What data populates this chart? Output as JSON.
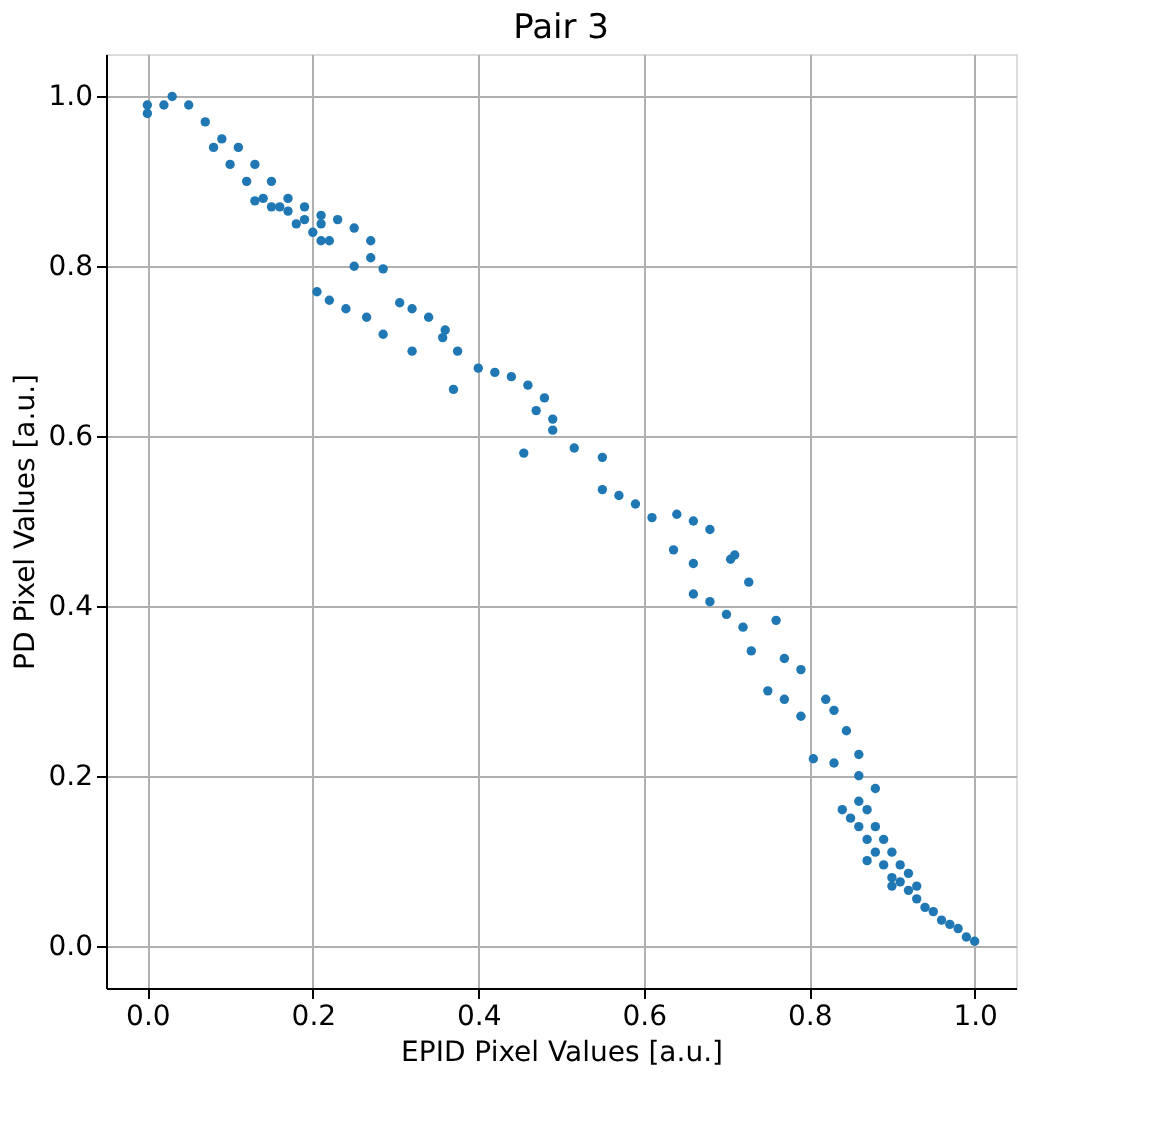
{
  "chart_data": {
    "type": "scatter",
    "title": "Pair 3",
    "xlabel": "EPID Pixel Values [a.u.]",
    "ylabel": "PD Pixel Values [a.u.]",
    "xlim": [
      -0.05,
      1.05
    ],
    "ylim": [
      -0.05,
      1.05
    ],
    "xticks": [
      {
        "value": 0,
        "label": "0.0"
      },
      0.2,
      0.4,
      0.6,
      0.8,
      {
        "value": 1,
        "label": "1.0"
      }
    ],
    "yticks": [
      {
        "value": 0,
        "label": "0.0"
      },
      0.2,
      0.4,
      0.6,
      0.8,
      {
        "value": 1,
        "label": "1.0"
      }
    ],
    "grid": true,
    "marker": "circle",
    "series": [
      {
        "color": "#1f77b4",
        "x": [
          0,
          0,
          0.02,
          0.03,
          0.05,
          0.07,
          0.09,
          0.11,
          0.13,
          0.15,
          0.17,
          0.19,
          0.21,
          0.22,
          0.08,
          0.1,
          0.12,
          0.14,
          0.16,
          0.18,
          0.2,
          0.13,
          0.15,
          0.17,
          0.19,
          0.21,
          0.23,
          0.25,
          0.27,
          0.21,
          0.25,
          0.285,
          0.27,
          0.205,
          0.22,
          0.24,
          0.265,
          0.285,
          0.32,
          0.37,
          0.455,
          0.305,
          0.32,
          0.34,
          0.36,
          0.357,
          0.375,
          0.4,
          0.42,
          0.44,
          0.46,
          0.48,
          0.47,
          0.49,
          0.516,
          0.55,
          0.49,
          0.55,
          0.57,
          0.59,
          0.61,
          0.64,
          0.66,
          0.68,
          0.71,
          0.636,
          0.66,
          0.705,
          0.727,
          0.66,
          0.68,
          0.7,
          0.72,
          0.76,
          0.73,
          0.77,
          0.79,
          0.82,
          0.83,
          0.845,
          0.75,
          0.77,
          0.79,
          0.805,
          0.83,
          0.86,
          0.88,
          0.86,
          0.84,
          0.85,
          0.86,
          0.87,
          0.88,
          0.89,
          0.9,
          0.91,
          0.92,
          0.93,
          0.94,
          0.95,
          0.96,
          0.97,
          0.98,
          0.99,
          1.0,
          0.86,
          0.87,
          0.88,
          0.89,
          0.9,
          0.91,
          0.92,
          0.93,
          0.87,
          0.9
        ],
        "values": [
          0.98,
          0.99,
          0.99,
          1.0,
          0.99,
          0.97,
          0.95,
          0.94,
          0.92,
          0.9,
          0.88,
          0.87,
          0.85,
          0.83,
          0.94,
          0.92,
          0.9,
          0.88,
          0.87,
          0.85,
          0.84,
          0.877,
          0.87,
          0.865,
          0.855,
          0.86,
          0.855,
          0.845,
          0.83,
          0.83,
          0.8,
          0.797,
          0.81,
          0.77,
          0.76,
          0.75,
          0.74,
          0.72,
          0.7,
          0.655,
          0.58,
          0.757,
          0.75,
          0.74,
          0.725,
          0.716,
          0.7,
          0.68,
          0.675,
          0.67,
          0.66,
          0.645,
          0.63,
          0.62,
          0.586,
          0.575,
          0.607,
          0.537,
          0.53,
          0.52,
          0.504,
          0.508,
          0.5,
          0.49,
          0.46,
          0.466,
          0.45,
          0.455,
          0.428,
          0.414,
          0.405,
          0.39,
          0.375,
          0.383,
          0.347,
          0.338,
          0.325,
          0.29,
          0.277,
          0.253,
          0.3,
          0.29,
          0.27,
          0.22,
          0.215,
          0.2,
          0.185,
          0.225,
          0.16,
          0.15,
          0.14,
          0.125,
          0.11,
          0.095,
          0.08,
          0.075,
          0.065,
          0.055,
          0.045,
          0.04,
          0.03,
          0.025,
          0.02,
          0.01,
          0.005,
          0.17,
          0.16,
          0.14,
          0.125,
          0.11,
          0.095,
          0.085,
          0.07,
          0.1,
          0.07
        ]
      }
    ]
  }
}
